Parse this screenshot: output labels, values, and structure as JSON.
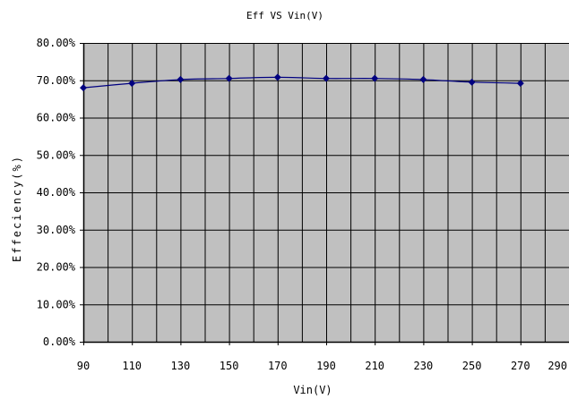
{
  "chart_data": {
    "type": "line",
    "title": "Eff VS Vin(V)",
    "xlabel": "Vin(V)",
    "ylabel": "Effeciency(%)",
    "x_ticks": [
      "90",
      "110",
      "130",
      "150",
      "170",
      "190",
      "210",
      "230",
      "250",
      "270",
      "290"
    ],
    "y_ticks": [
      "0.00%",
      "10.00%",
      "20.00%",
      "30.00%",
      "40.00%",
      "50.00%",
      "60.00%",
      "70.00%",
      "80.00%"
    ],
    "xlim": [
      90,
      290
    ],
    "ylim": [
      0,
      80
    ],
    "grid": true,
    "x": [
      90,
      110,
      130,
      150,
      170,
      190,
      210,
      230,
      250,
      270
    ],
    "series": [
      {
        "values": [
          68.0,
          69.2,
          70.2,
          70.5,
          70.8,
          70.5,
          70.5,
          70.2,
          69.5,
          69.2
        ]
      }
    ],
    "colors": {
      "plot_bg": "#c0c0c0",
      "line": "#000080",
      "grid": "#000000"
    }
  }
}
